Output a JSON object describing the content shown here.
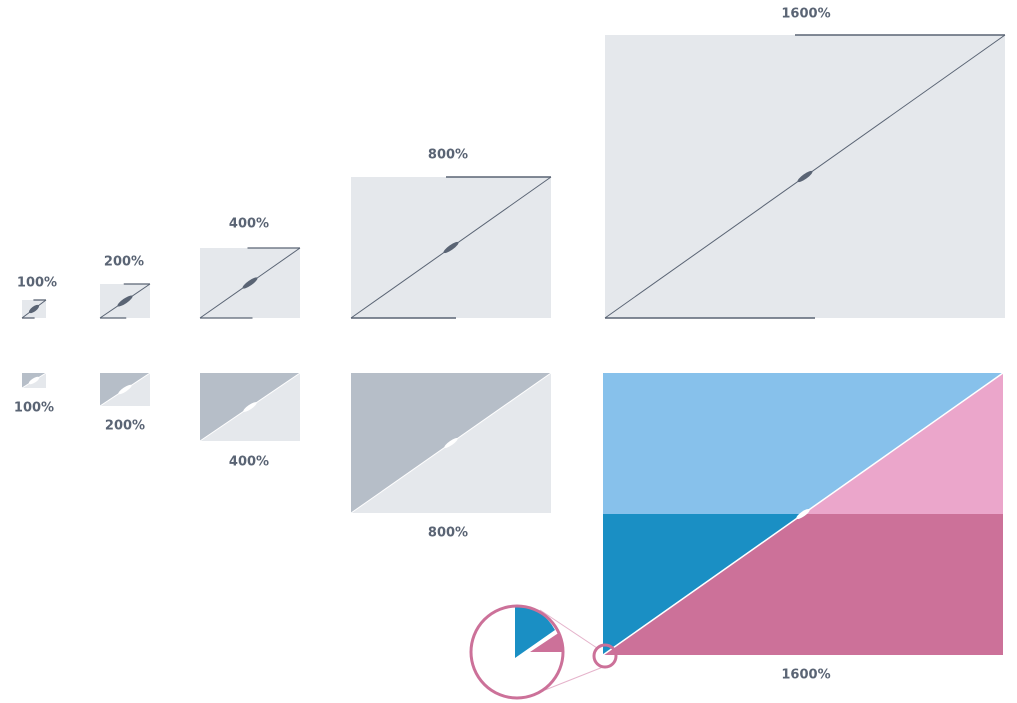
{
  "top": {
    "labels": [
      "100%",
      "200%",
      "400%",
      "800%",
      "1600%"
    ]
  },
  "bottom": {
    "labels": [
      "100%",
      "200%",
      "400%",
      "800%",
      "1600%"
    ]
  }
}
